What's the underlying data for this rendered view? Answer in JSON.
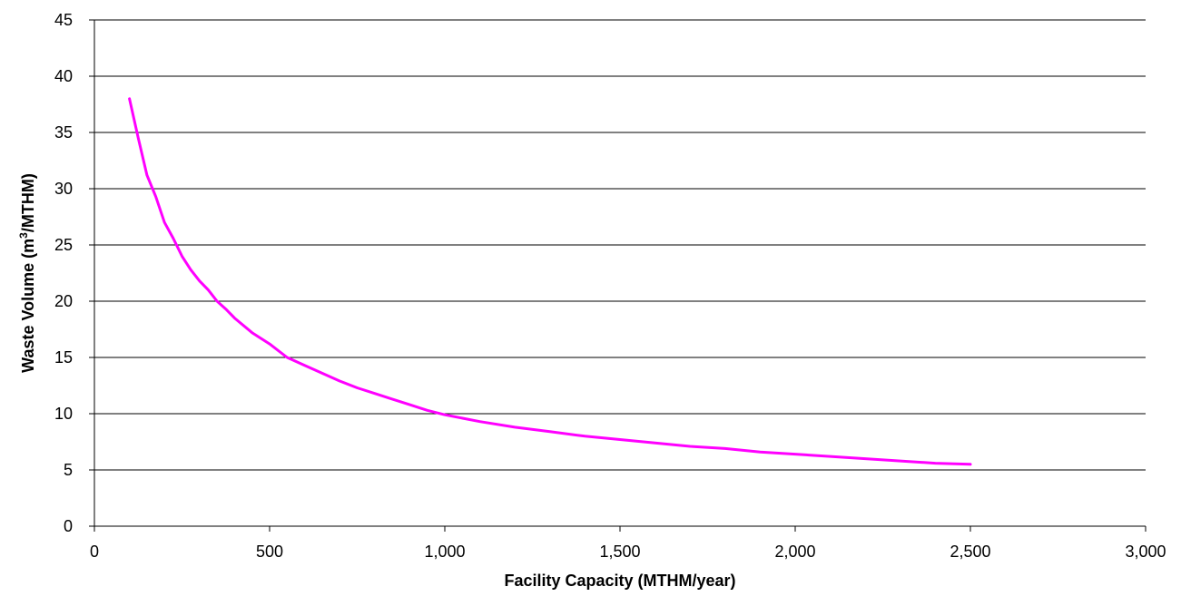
{
  "chart_data": {
    "type": "line",
    "title": "",
    "xlabel": "Facility Capacity (MTHM/year)",
    "ylabel": {
      "prefix": "Waste Volume (m",
      "superscript": "3",
      "suffix": "/MTHM)"
    },
    "xlim": [
      0,
      3000
    ],
    "ylim": [
      0,
      45
    ],
    "x_ticks": [
      0,
      500,
      1000,
      1500,
      2000,
      2500,
      3000
    ],
    "x_tick_labels": [
      "0",
      "500",
      "1,000",
      "1,500",
      "2,000",
      "2,500",
      "3,000"
    ],
    "y_ticks": [
      0,
      5,
      10,
      15,
      20,
      25,
      30,
      35,
      40,
      45
    ],
    "y_tick_labels": [
      "0",
      "5",
      "10",
      "15",
      "20",
      "25",
      "30",
      "35",
      "40",
      "45"
    ],
    "grid": "horizontal",
    "legend": "none",
    "series": [
      {
        "color": "#ff00ff",
        "x": [
          100,
          125,
          150,
          175,
          200,
          225,
          250,
          275,
          300,
          325,
          350,
          375,
          400,
          450,
          500,
          550,
          600,
          650,
          700,
          750,
          800,
          850,
          900,
          950,
          1000,
          1100,
          1200,
          1300,
          1400,
          1500,
          1600,
          1700,
          1800,
          1900,
          2000,
          2100,
          2200,
          2300,
          2400,
          2500
        ],
        "y": [
          38.0,
          34.5,
          31.2,
          29.3,
          27.0,
          25.6,
          24.0,
          22.8,
          21.8,
          21.0,
          20.0,
          19.3,
          18.5,
          17.2,
          16.2,
          15.0,
          14.3,
          13.6,
          12.9,
          12.3,
          11.8,
          11.3,
          10.8,
          10.3,
          9.9,
          9.3,
          8.8,
          8.4,
          8.0,
          7.7,
          7.4,
          7.1,
          6.9,
          6.6,
          6.4,
          6.2,
          6.0,
          5.8,
          5.6,
          5.5
        ]
      }
    ]
  }
}
